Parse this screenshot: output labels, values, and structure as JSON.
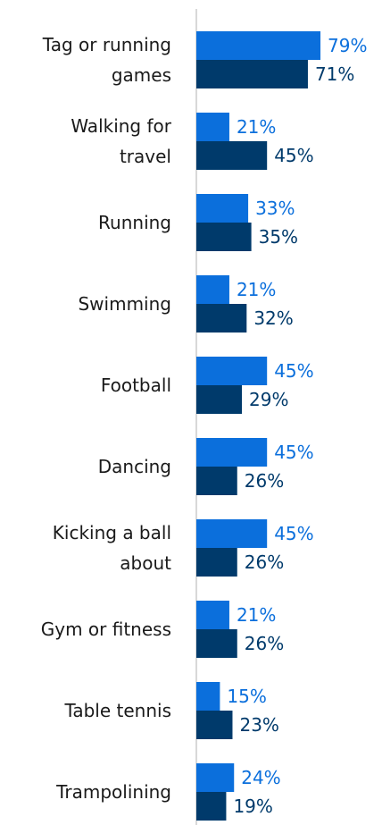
{
  "chart_data": {
    "type": "bar",
    "orientation": "horizontal",
    "categories": [
      [
        "Tag or running",
        "games"
      ],
      [
        "Walking for",
        "travel"
      ],
      [
        "Running"
      ],
      [
        "Swimming"
      ],
      [
        "Football"
      ],
      [
        "Dancing"
      ],
      [
        "Kicking a ball",
        "about"
      ],
      [
        "Gym or fitness"
      ],
      [
        "Table tennis"
      ],
      [
        "Trampolining"
      ]
    ],
    "series": [
      {
        "color": "#0b6fdc",
        "values": [
          79,
          21,
          33,
          21,
          45,
          45,
          45,
          21,
          15,
          24
        ],
        "labels": [
          "79%",
          "21%",
          "33%",
          "21%",
          "45%",
          "45%",
          "45%",
          "21%",
          "15%",
          "24%"
        ]
      },
      {
        "color": "#003a6b",
        "values": [
          71,
          45,
          35,
          32,
          29,
          26,
          26,
          26,
          23,
          19
        ],
        "labels": [
          "71%",
          "45%",
          "35%",
          "32%",
          "29%",
          "26%",
          "26%",
          "26%",
          "23%",
          "19%"
        ]
      }
    ],
    "xlim": [
      0,
      100
    ],
    "grid": false,
    "legend": "none",
    "axis_color": "#cccccc"
  }
}
